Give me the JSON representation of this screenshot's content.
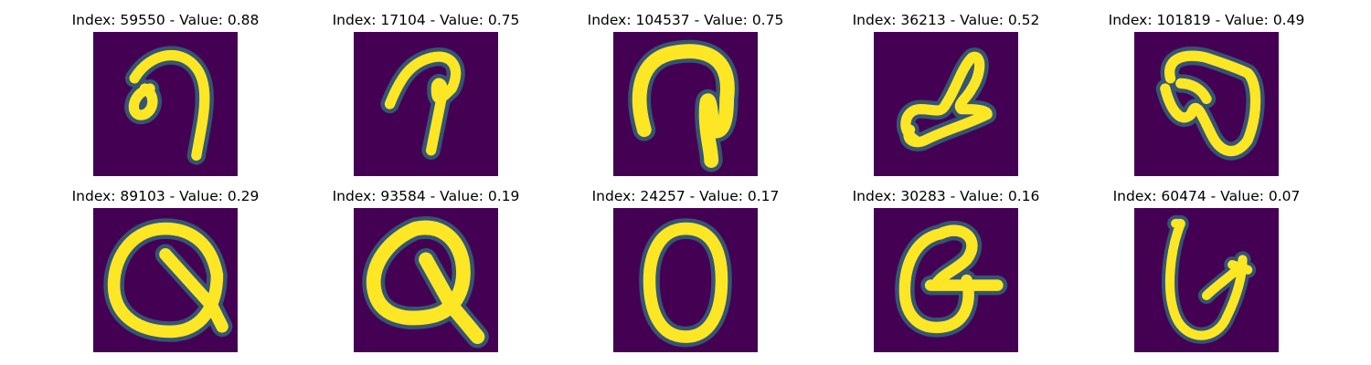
{
  "colors": {
    "background": "#440154",
    "ink": "#fde725",
    "edge": "#2a9a8a"
  },
  "grid": {
    "rows": 2,
    "columns": 5
  },
  "panels": [
    {
      "title": "Index: 59550 - Value: 0.88",
      "index": 59550,
      "value": 0.88,
      "glyph": "cursive-a-hook"
    },
    {
      "title": "Index: 17104 - Value: 0.75",
      "index": 17104,
      "value": 0.75,
      "glyph": "cane-stroke"
    },
    {
      "title": "Index: 104537 - Value: 0.75",
      "index": 104537,
      "value": 0.75,
      "glyph": "arch-stroke"
    },
    {
      "title": "Index: 36213 - Value: 0.52",
      "index": 36213,
      "value": 0.52,
      "glyph": "looped-s"
    },
    {
      "title": "Index: 101819 - Value: 0.49",
      "index": 101819,
      "value": 0.49,
      "glyph": "heart-loop"
    },
    {
      "title": "Index: 89103 - Value: 0.29",
      "index": 89103,
      "value": 0.29,
      "glyph": "q-shape"
    },
    {
      "title": "Index: 93584 - Value: 0.19",
      "index": 93584,
      "value": 0.19,
      "glyph": "q-shape-bold"
    },
    {
      "title": "Index: 24257 - Value: 0.17",
      "index": 24257,
      "value": 0.17,
      "glyph": "o-shape"
    },
    {
      "title": "Index: 30283 - Value: 0.16",
      "index": 30283,
      "value": 0.16,
      "glyph": "looped-g"
    },
    {
      "title": "Index: 60474 - Value: 0.07",
      "index": 60474,
      "value": 0.07,
      "glyph": "hook-g"
    }
  ]
}
